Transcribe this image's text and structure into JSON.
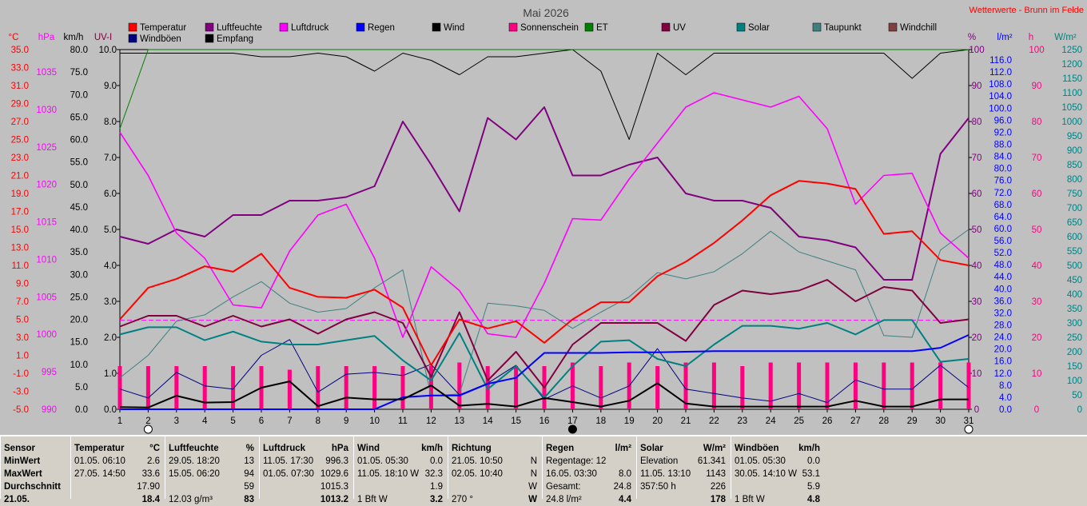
{
  "header": {
    "title": "Mai 2026",
    "station": "Wetterwerte - Brunn im Felde"
  },
  "colors": {
    "bg": "#c0c0c0",
    "temp": "#ff0000",
    "hum": "#800080",
    "press": "#ff00ff",
    "rain": "#0000ff",
    "wind": "#000000",
    "sun": "#ff0080",
    "et": "#008000",
    "uv": "#800040",
    "solar": "#008080",
    "dew": "#408080",
    "windchill": "#804040",
    "gust": "#000080",
    "recv": "#000000"
  },
  "legend": [
    {
      "label": "Temperatur",
      "color": "#ff0000"
    },
    {
      "label": "Luftfeuchte",
      "color": "#800080"
    },
    {
      "label": "Luftdruck",
      "color": "#ff00ff"
    },
    {
      "label": "Regen",
      "color": "#0000ff"
    },
    {
      "label": "Wind",
      "color": "#000000"
    },
    {
      "label": "Sonnenschein",
      "color": "#ff0080"
    },
    {
      "label": "ET",
      "color": "#008000"
    },
    {
      "label": "UV",
      "color": "#800040"
    },
    {
      "label": "Solar",
      "color": "#008080"
    },
    {
      "label": "Taupunkt",
      "color": "#408080"
    },
    {
      "label": "Windchill",
      "color": "#804040"
    },
    {
      "label": "Windböen",
      "color": "#000080"
    },
    {
      "label": "Empfang",
      "color": "#000000"
    }
  ],
  "axes": {
    "units_left": [
      "°C",
      "hPa",
      "km/h",
      "UV-I"
    ],
    "units_right": [
      "%",
      "l/m²",
      "h",
      "W/m²"
    ],
    "temp_ticks": [
      "35.0",
      "33.0",
      "31.0",
      "29.0",
      "27.0",
      "25.0",
      "23.0",
      "21.0",
      "19.0",
      "17.0",
      "15.0",
      "13.0",
      "11.0",
      "9.0",
      "7.0",
      "5.0",
      "3.0",
      "1.0",
      "-1.0",
      "-3.0",
      "-5.0"
    ],
    "press_ticks": [
      "1035",
      "1030",
      "1025",
      "1020",
      "1015",
      "1010",
      "1005",
      "1000",
      "995",
      "990"
    ],
    "wind_ticks": [
      "80.0",
      "75.0",
      "70.0",
      "65.0",
      "60.0",
      "55.0",
      "50.0",
      "45.0",
      "40.0",
      "35.0",
      "30.0",
      "25.0",
      "20.0",
      "15.0",
      "10.0",
      "5.0",
      "0.0"
    ],
    "uv_ticks": [
      "10.0",
      "9.0",
      "8.0",
      "7.0",
      "6.0",
      "5.0",
      "4.0",
      "3.0",
      "2.0",
      "1.0",
      "0.0"
    ],
    "hum_ticks": [
      "100",
      "90",
      "80",
      "70",
      "60",
      "50",
      "40",
      "30",
      "20",
      "10",
      "0"
    ],
    "rain_ticks": [
      "116.0",
      "112.0",
      "108.0",
      "104.0",
      "100.0",
      "96.0",
      "92.0",
      "88.0",
      "84.0",
      "80.0",
      "76.0",
      "72.0",
      "68.0",
      "64.0",
      "60.0",
      "56.0",
      "52.0",
      "48.0",
      "44.0",
      "40.0",
      "36.0",
      "32.0",
      "28.0",
      "24.0",
      "20.0",
      "16.0",
      "12.0",
      "8.0",
      "4.0",
      "0.0"
    ],
    "sun_ticks": [
      "100",
      "90",
      "80",
      "70",
      "60",
      "50",
      "40",
      "30",
      "20",
      "10",
      "0"
    ],
    "solar_ticks": [
      "1250",
      "1200",
      "1150",
      "1100",
      "1050",
      "1000",
      "950",
      "900",
      "850",
      "800",
      "750",
      "700",
      "650",
      "600",
      "550",
      "500",
      "450",
      "400",
      "350",
      "300",
      "250",
      "200",
      "150",
      "100",
      "50",
      "0"
    ],
    "x_ticks": [
      "1",
      "2",
      "3",
      "4",
      "5",
      "6",
      "7",
      "8",
      "9",
      "10",
      "11",
      "12",
      "13",
      "14",
      "15",
      "16",
      "17",
      "18",
      "19",
      "20",
      "21",
      "22",
      "23",
      "24",
      "25",
      "26",
      "27",
      "28",
      "29",
      "30",
      "31"
    ]
  },
  "chart_data": {
    "type": "line",
    "title": "Mai 2026",
    "x": [
      1,
      2,
      3,
      4,
      5,
      6,
      7,
      8,
      9,
      10,
      11,
      12,
      13,
      14,
      15,
      16,
      17,
      18,
      19,
      20,
      21,
      22,
      23,
      24,
      25,
      26,
      27,
      28,
      29,
      30,
      31
    ],
    "reference_line_temp": 4.9,
    "moon_phases": [
      {
        "day": 2,
        "phase": "full"
      },
      {
        "day": 17,
        "phase": "new"
      },
      {
        "day": 31,
        "phase": "full"
      }
    ],
    "series": [
      {
        "name": "Temperatur",
        "axis": "temp",
        "ylim": [
          -5,
          35
        ],
        "values": [
          5.0,
          8.5,
          9.5,
          10.9,
          10.3,
          12.3,
          8.5,
          7.5,
          7.4,
          8.3,
          6.3,
          -0.1,
          5.0,
          4.0,
          4.8,
          2.4,
          5.0,
          6.9,
          6.9,
          9.8,
          11.4,
          13.5,
          16.0,
          18.8,
          20.4,
          20.1,
          19.5,
          14.5,
          14.8,
          11.6,
          11.0
        ]
      },
      {
        "name": "Luftfeuchte",
        "axis": "hum",
        "ylim": [
          0,
          100
        ],
        "values": [
          48,
          46,
          50,
          48,
          54,
          54,
          58,
          58,
          59,
          62,
          80,
          68,
          55,
          81,
          75,
          84,
          65,
          65,
          68,
          70,
          60,
          58,
          58,
          56,
          48,
          47,
          45,
          36,
          36,
          71,
          81
        ]
      },
      {
        "name": "Luftdruck",
        "axis": "press",
        "ylim": [
          990,
          1040
        ],
        "values": [
          1028.5,
          1022.5,
          1014.5,
          1011.0,
          1004.5,
          1004.1,
          1012.0,
          1017.0,
          1018.5,
          1011.0,
          1000.0,
          1009.8,
          1006.5,
          1000.5,
          1000.0,
          1007.5,
          1016.5,
          1016.3,
          1022.0,
          1027.0,
          1032.0,
          1034.0,
          1033.0,
          1032.0,
          1033.5,
          1029.0,
          1018.5,
          1022.5,
          1022.8,
          1014.5,
          1011.0
        ]
      },
      {
        "name": "Regen",
        "axis": "rain",
        "ylim": [
          0,
          120
        ],
        "values": [
          0,
          0,
          0,
          0,
          0,
          0,
          0,
          0,
          0,
          0,
          4.0,
          4.6,
          4.6,
          8.5,
          10.5,
          18.8,
          18.8,
          18.8,
          19.0,
          19.0,
          19.2,
          19.4,
          19.4,
          19.4,
          19.4,
          19.4,
          19.4,
          19.4,
          19.4,
          20.5,
          24.8
        ]
      },
      {
        "name": "Wind",
        "axis": "wind",
        "ylim": [
          0,
          80
        ],
        "values": [
          0.5,
          0.4,
          3.0,
          1.5,
          1.6,
          4.8,
          6.2,
          0.7,
          2.6,
          2.2,
          2.2,
          5.3,
          0.8,
          1.2,
          0.6,
          2.5,
          1.6,
          0.6,
          1.9,
          5.8,
          1.3,
          0.6,
          0.6,
          0.6,
          0.6,
          0.6,
          1.9,
          0.6,
          0.6,
          2.2,
          2.2
        ]
      },
      {
        "name": "Windböen",
        "axis": "wind",
        "ylim": [
          0,
          80
        ],
        "values": [
          4.5,
          2.5,
          8.2,
          5.2,
          4.5,
          12.0,
          15.5,
          3.8,
          7.8,
          8.2,
          7.5,
          10.0,
          3.2,
          5.8,
          9.8,
          2.2,
          5.2,
          2.5,
          5.2,
          13.5,
          4.5,
          3.5,
          2.5,
          1.8,
          3.5,
          1.5,
          6.5,
          4.5,
          4.5,
          9.8,
          4.8
        ]
      },
      {
        "name": "Empfang",
        "axis": "hum",
        "ylim": [
          0,
          100
        ],
        "values": [
          99,
          99,
          99,
          99,
          99,
          98,
          98,
          99,
          98,
          94,
          99,
          97,
          93,
          98,
          98,
          99,
          100,
          94,
          75,
          99,
          93,
          99,
          99,
          99,
          99,
          99,
          99,
          99,
          92,
          99,
          100
        ]
      },
      {
        "name": "Sonnenschein",
        "axis": "sun",
        "ylim": [
          0,
          100
        ],
        "values": [
          12,
          12,
          12,
          12,
          12,
          12,
          11,
          12,
          12,
          12,
          12,
          12,
          13,
          12,
          12,
          12,
          13,
          12,
          13,
          12,
          13,
          13,
          12,
          13,
          13,
          13,
          13,
          13,
          13,
          13,
          13
        ]
      },
      {
        "name": "UV",
        "axis": "uv",
        "ylim": [
          0,
          10
        ],
        "values": [
          2.3,
          2.6,
          2.6,
          2.3,
          2.6,
          2.3,
          2.5,
          2.1,
          2.5,
          2.7,
          2.4,
          0.9,
          2.7,
          0.8,
          1.6,
          0.6,
          1.8,
          2.4,
          2.4,
          2.4,
          1.9,
          2.9,
          3.3,
          3.2,
          3.3,
          3.6,
          3.0,
          3.4,
          3.3,
          2.4,
          2.5
        ]
      },
      {
        "name": "Solar",
        "axis": "solar",
        "ylim": [
          0,
          1250
        ],
        "values": [
          260,
          285,
          285,
          240,
          270,
          235,
          225,
          225,
          240,
          255,
          170,
          100,
          265,
          70,
          150,
          40,
          150,
          235,
          240,
          175,
          150,
          225,
          290,
          290,
          280,
          300,
          260,
          310,
          310,
          165,
          175
        ]
      },
      {
        "name": "Taupunkt",
        "axis": "temp",
        "ylim": [
          -5,
          35
        ],
        "values": [
          -1.5,
          1.0,
          4.8,
          5.5,
          7.5,
          9.2,
          6.8,
          5.8,
          6.2,
          8.5,
          10.5,
          -3.5,
          -3.3,
          6.8,
          6.5,
          6.0,
          4.0,
          5.8,
          7.5,
          10.2,
          9.5,
          10.3,
          12.3,
          14.8,
          12.5,
          11.5,
          10.5,
          3.2,
          3.0,
          12.7,
          15.0
        ]
      },
      {
        "name": "ET",
        "axis": "solar",
        "ylim": [
          0,
          1250
        ],
        "values": [
          975,
          1250,
          1250,
          1250,
          1250,
          1250,
          1250,
          1250,
          1250,
          1250,
          1250,
          1250,
          1250,
          1250,
          1250,
          1250,
          1250,
          1250,
          1250,
          1250,
          1250,
          1250,
          1250,
          1250,
          1250,
          1250,
          1250,
          1250,
          1250,
          1250,
          1250
        ]
      }
    ]
  },
  "stats": {
    "sensor": {
      "header": "Sensor",
      "rows": [
        "MinWert",
        "MaxWert",
        "Durchschnitt",
        "21.05."
      ]
    },
    "temp": {
      "header": "Temperatur",
      "unit": "°C",
      "rows": [
        [
          "01.05.  06:10",
          "2.6"
        ],
        [
          "27.05.  14:50",
          "33.6"
        ],
        [
          "",
          "17.90"
        ],
        [
          "",
          "18.4"
        ]
      ]
    },
    "hum": {
      "header": "Luftfeuchte",
      "unit": "%",
      "rows": [
        [
          "29.05.  18:20",
          "13"
        ],
        [
          "15.05.  06:20",
          "94"
        ],
        [
          "",
          "59"
        ],
        [
          "12.03 g/m³",
          "83"
        ]
      ]
    },
    "press": {
      "header": "Luftdruck",
      "unit": "hPa",
      "rows": [
        [
          "11.05.  17:30",
          "996.3"
        ],
        [
          "01.05.  07:30",
          "1029.6"
        ],
        [
          "",
          "1015.3"
        ],
        [
          "",
          "1013.2"
        ]
      ]
    },
    "wind": {
      "header": "Wind",
      "unit": "km/h",
      "rows": [
        [
          "01.05.  05:30",
          "0.0"
        ],
        [
          "11.05.  18:10  W",
          "32.3"
        ],
        [
          "",
          "1.9"
        ],
        [
          "1 Bft W",
          "3.2"
        ]
      ]
    },
    "dir": {
      "header": "Richtung",
      "rows": [
        [
          "21.05.  10:50",
          "N"
        ],
        [
          "02.05.  10:40",
          "N"
        ],
        [
          "",
          "W"
        ],
        [
          "270 °",
          "W"
        ]
      ]
    },
    "rain": {
      "header": "Regen",
      "unit": "l/m²",
      "rows": [
        [
          "Regentage: 12",
          ""
        ],
        [
          "16.05.  03:30",
          "8.0"
        ],
        [
          "Gesamt:",
          "24.8"
        ],
        [
          "24.8 l/m²",
          "4.4"
        ]
      ]
    },
    "solar": {
      "header": "Solar",
      "unit": "W/m²",
      "rows": [
        [
          "Elevation",
          "61.341"
        ],
        [
          "11.05.  13:10",
          "1143"
        ],
        [
          "357:50 h",
          "226"
        ],
        [
          "",
          "178"
        ]
      ]
    },
    "gust": {
      "header": "Windböen",
      "unit": "km/h",
      "rows": [
        [
          "01.05.  05:30",
          "0.0"
        ],
        [
          "30.05.  14:10  W",
          "53.1"
        ],
        [
          "",
          "5.9"
        ],
        [
          "1 Bft W",
          "4.8"
        ]
      ]
    }
  }
}
